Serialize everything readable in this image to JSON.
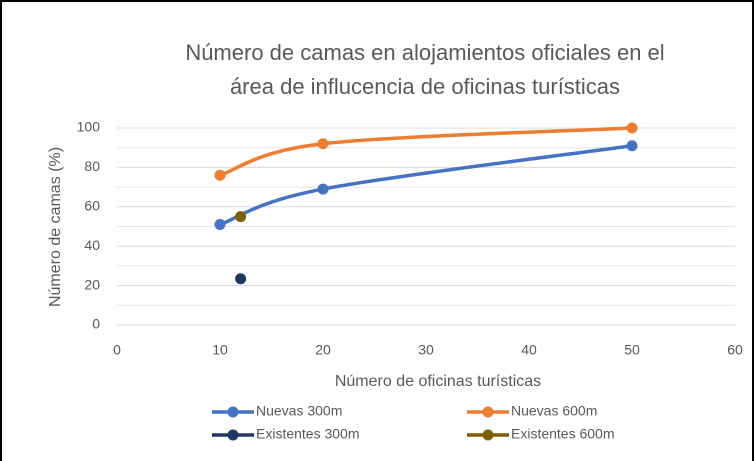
{
  "chart_data": {
    "type": "scatter",
    "smooth": true,
    "title": [
      "Número de camas en alojamientos oficiales en el",
      "área de influcencia de oficinas turísticas"
    ],
    "x_label": "Número de oficinas turísticas",
    "y_label": "Número de camas (%)",
    "xlim": [
      0,
      60
    ],
    "xticks": [
      0,
      10,
      20,
      30,
      40,
      50,
      60
    ],
    "ylim": [
      0,
      100
    ],
    "yticks": [
      0,
      20,
      40,
      60,
      80,
      100
    ],
    "yminor": [
      10,
      30,
      50,
      70,
      90
    ],
    "grid": true,
    "legend": "bottom",
    "series": [
      {
        "name": "Nuevas 300m",
        "color": "#4472c4",
        "lines": true,
        "x": [
          10,
          20,
          50
        ],
        "values": [
          51,
          69,
          91
        ]
      },
      {
        "name": "Nuevas 600m",
        "color": "#ed7d31",
        "lines": true,
        "x": [
          10,
          20,
          50
        ],
        "values": [
          76,
          92,
          100
        ]
      },
      {
        "name": "Existentes 300m",
        "color": "#203864",
        "lines": false,
        "x": [
          12
        ],
        "values": [
          23.5
        ]
      },
      {
        "name": "Existentes 600m",
        "color": "#7f6000",
        "lines": false,
        "x": [
          12
        ],
        "values": [
          55
        ]
      }
    ]
  }
}
